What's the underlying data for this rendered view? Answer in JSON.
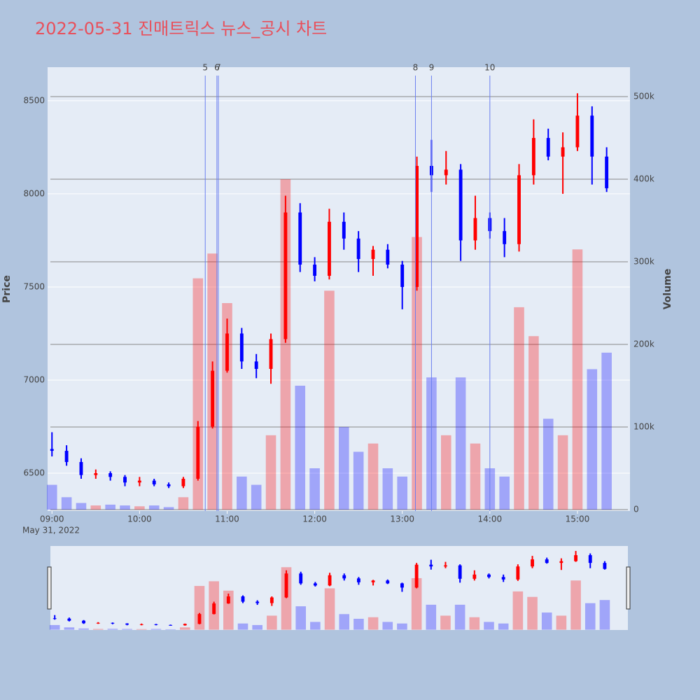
{
  "chart_data": {
    "type": "candlestick",
    "title": "2022-05-31 진매트릭스 뉴스_공시 차트",
    "x_label_date": "May 31, 2022",
    "y_label": "Price",
    "y2_label": "Volume",
    "x": [
      "09:00",
      "09:10",
      "09:20",
      "09:30",
      "09:40",
      "09:50",
      "10:00",
      "10:10",
      "10:20",
      "10:30",
      "10:40",
      "10:50",
      "11:00",
      "11:10",
      "11:20",
      "11:30",
      "11:40",
      "11:50",
      "12:00",
      "12:10",
      "12:20",
      "12:30",
      "12:40",
      "12:50",
      "13:00",
      "13:10",
      "13:20",
      "13:30",
      "13:40",
      "13:50",
      "14:00",
      "14:10",
      "14:20",
      "14:30",
      "14:40",
      "14:50",
      "15:00",
      "15:10",
      "15:20"
    ],
    "open": [
      6630,
      6620,
      6560,
      6490,
      6500,
      6480,
      6450,
      6460,
      6440,
      6430,
      6470,
      6750,
      7050,
      7250,
      7100,
      7060,
      7220,
      7900,
      7620,
      7560,
      7850,
      7760,
      7650,
      7700,
      7620,
      7500,
      8150,
      8100,
      8130,
      7750,
      7870,
      7800,
      7730,
      8100,
      8300,
      8200,
      8250,
      8420,
      8200
    ],
    "high": [
      6720,
      6650,
      6580,
      6520,
      6510,
      6490,
      6480,
      6470,
      6450,
      6480,
      6780,
      7100,
      7330,
      7280,
      7140,
      7250,
      7990,
      7950,
      7660,
      7920,
      7900,
      7800,
      7720,
      7730,
      7640,
      8200,
      8290,
      8230,
      8160,
      7990,
      7900,
      7870,
      8160,
      8400,
      8350,
      8330,
      8540,
      8470,
      8250
    ],
    "low": [
      6590,
      6540,
      6470,
      6470,
      6460,
      6430,
      6430,
      6430,
      6420,
      6420,
      6460,
      6740,
      7040,
      7060,
      7010,
      6980,
      7200,
      7580,
      7530,
      7540,
      7700,
      7580,
      7560,
      7600,
      7380,
      7480,
      8010,
      8050,
      7640,
      7700,
      7760,
      7660,
      7690,
      8050,
      8180,
      8000,
      8230,
      8050,
      8010
    ],
    "close": [
      6620,
      6560,
      6490,
      6500,
      6480,
      6450,
      6460,
      6440,
      6430,
      6470,
      6750,
      7050,
      7250,
      7100,
      7060,
      7220,
      7900,
      7620,
      7560,
      7850,
      7760,
      7650,
      7700,
      7620,
      7500,
      8150,
      8100,
      8130,
      7750,
      7870,
      7800,
      7730,
      8100,
      8300,
      8200,
      8250,
      8420,
      8200,
      8030
    ],
    "volume": [
      30000,
      15000,
      8000,
      5000,
      6000,
      5000,
      4000,
      5000,
      3000,
      15000,
      280000,
      310000,
      250000,
      40000,
      30000,
      90000,
      400000,
      150000,
      50000,
      265000,
      100000,
      70000,
      80000,
      50000,
      40000,
      330000,
      160000,
      90000,
      160000,
      80000,
      50000,
      40000,
      245000,
      210000,
      110000,
      90000,
      315000,
      170000,
      190000
    ],
    "up_color": "#ff0000",
    "down_color": "#0000ff",
    "news": [
      {
        "label": "5",
        "x": "10:45"
      },
      {
        "label": "6",
        "x": "10:53"
      },
      {
        "label": "7",
        "x": "10:54"
      },
      {
        "label": "8",
        "x": "13:09"
      },
      {
        "label": "9",
        "x": "13:20"
      },
      {
        "label": "10",
        "x": "14:00"
      }
    ],
    "xlim": [
      "08:57",
      "15:36"
    ],
    "xticks": [
      "09:00",
      "10:00",
      "11:00",
      "12:00",
      "13:00",
      "14:00",
      "15:00"
    ],
    "ylim": [
      6297,
      8680
    ],
    "yticks": [
      6500,
      7000,
      7500,
      8000,
      8500
    ],
    "y2lim": [
      -1700,
      535600
    ],
    "y2ticks": [
      0,
      {
        "value": 100000,
        "label": "100k"
      },
      {
        "value": 200000,
        "label": "200k"
      },
      {
        "value": 300000,
        "label": "300k"
      },
      {
        "value": 400000,
        "label": "400k"
      },
      {
        "value": 500000,
        "label": "500k"
      }
    ],
    "grid": true,
    "range_slider": true
  }
}
